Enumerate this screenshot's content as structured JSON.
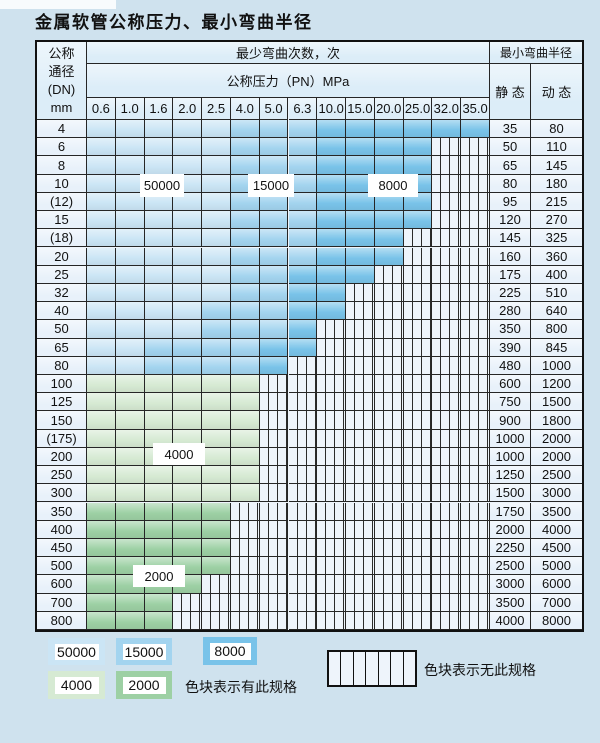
{
  "title": "金属软管公称压力、最小弯曲半径",
  "table": {
    "header": {
      "dn_label_lines": [
        "公称",
        "通径",
        "(DN)",
        "mm"
      ],
      "min_bend_cycles_label": "最少弯曲次数，次",
      "nominal_pressure_label": "公称压力（PN）MPa",
      "min_bend_radius_label": "最小弯曲半径",
      "static_label": "静 态",
      "dynamic_label": "动 态",
      "pressure_columns": [
        "0.6",
        "1.0",
        "1.6",
        "2.0",
        "2.5",
        "4.0",
        "5.0",
        "6.3",
        "10.0",
        "15.0",
        "20.0",
        "25.0",
        "32.0",
        "35.0"
      ]
    },
    "cell_code_key": {
      "L": "50000",
      "M": "15000",
      "D": "8000",
      "A": "4000",
      "B": "2000",
      "X": "no-spec-hatched"
    },
    "rows": [
      {
        "dn": "4",
        "cells": "LLLLLMMMDDDDDD",
        "static_radius": "35",
        "dynamic_radius": "80"
      },
      {
        "dn": "6",
        "cells": "LLLLLMMMDDDDXX",
        "static_radius": "50",
        "dynamic_radius": "110"
      },
      {
        "dn": "8",
        "cells": "LLLLLMMMDDDDXX",
        "static_radius": "65",
        "dynamic_radius": "145"
      },
      {
        "dn": "10",
        "cells": "LLLLLMMMDDDDXX",
        "static_radius": "80",
        "dynamic_radius": "180"
      },
      {
        "dn": "(12)",
        "cells": "LLLLLMMMDDDDXX",
        "static_radius": "95",
        "dynamic_radius": "215"
      },
      {
        "dn": "15",
        "cells": "LLLLLMMMDDDDXX",
        "static_radius": "120",
        "dynamic_radius": "270"
      },
      {
        "dn": "(18)",
        "cells": "LLLLLMMMDDDXXX",
        "static_radius": "145",
        "dynamic_radius": "325"
      },
      {
        "dn": "20",
        "cells": "LLLLLMMMDDDXXX",
        "static_radius": "160",
        "dynamic_radius": "360"
      },
      {
        "dn": "25",
        "cells": "LLLLLMMDDDXXXX",
        "static_radius": "175",
        "dynamic_radius": "400"
      },
      {
        "dn": "32",
        "cells": "LLLLLMMDDXXXXX",
        "static_radius": "225",
        "dynamic_radius": "510"
      },
      {
        "dn": "40",
        "cells": "LLLLMMMDDXXXXX",
        "static_radius": "280",
        "dynamic_radius": "640"
      },
      {
        "dn": "50",
        "cells": "LLLLMMMDXXXXXX",
        "static_radius": "350",
        "dynamic_radius": "800"
      },
      {
        "dn": "65",
        "cells": "LLMMMMDDXXXXXX",
        "static_radius": "390",
        "dynamic_radius": "845"
      },
      {
        "dn": "80",
        "cells": "LLMMMMDXXXXXXX",
        "static_radius": "480",
        "dynamic_radius": "1000"
      },
      {
        "dn": "100",
        "cells": "AAAAAAXXXXXXXX",
        "static_radius": "600",
        "dynamic_radius": "1200"
      },
      {
        "dn": "125",
        "cells": "AAAAAAXXXXXXXX",
        "static_radius": "750",
        "dynamic_radius": "1500"
      },
      {
        "dn": "150",
        "cells": "AAAAAAXXXXXXXX",
        "static_radius": "900",
        "dynamic_radius": "1800"
      },
      {
        "dn": "(175)",
        "cells": "AAAAAAXXXXXXXX",
        "static_radius": "1000",
        "dynamic_radius": "2000"
      },
      {
        "dn": "200",
        "cells": "AAAAAAXXXXXXXX",
        "static_radius": "1000",
        "dynamic_radius": "2000"
      },
      {
        "dn": "250",
        "cells": "AAAAAAXXXXXXXX",
        "static_radius": "1250",
        "dynamic_radius": "2500"
      },
      {
        "dn": "300",
        "cells": "AAAAAAXXXXXXXX",
        "static_radius": "1500",
        "dynamic_radius": "3000"
      },
      {
        "dn": "350",
        "cells": "BBBBBXXXXXXXXX",
        "static_radius": "1750",
        "dynamic_radius": "3500"
      },
      {
        "dn": "400",
        "cells": "BBBBBXXXXXXXXX",
        "static_radius": "2000",
        "dynamic_radius": "4000"
      },
      {
        "dn": "450",
        "cells": "BBBBBXXXXXXXXX",
        "static_radius": "2250",
        "dynamic_radius": "4500"
      },
      {
        "dn": "500",
        "cells": "BBBBBXXXXXXXXX",
        "static_radius": "2500",
        "dynamic_radius": "5000"
      },
      {
        "dn": "600",
        "cells": "BBBBXXXXXXXXXX",
        "static_radius": "3000",
        "dynamic_radius": "6000"
      },
      {
        "dn": "700",
        "cells": "BBBXXXXXXXXXXX",
        "static_radius": "3500",
        "dynamic_radius": "7000"
      },
      {
        "dn": "800",
        "cells": "BBBXXXXXXXXXXX",
        "static_radius": "4000",
        "dynamic_radius": "8000"
      }
    ],
    "overlay_labels": {
      "l50000": "50000",
      "l15000": "15000",
      "l8000": "8000",
      "l4000": "4000",
      "l2000": "2000"
    }
  },
  "legend": {
    "swatches": [
      {
        "value": "50000",
        "color_key": "c50000"
      },
      {
        "value": "15000",
        "color_key": "c15000"
      },
      {
        "value": "8000",
        "color_key": "c8000"
      },
      {
        "value": "4000",
        "color_key": "c4000"
      },
      {
        "value": "2000",
        "color_key": "c2000"
      }
    ],
    "has_spec_note": "色块表示有此规格",
    "no_spec_note": "色块表示无此规格"
  },
  "colors": {
    "c50000": "#cbe5f5",
    "c15000": "#a3d4ef",
    "c8000": "#79c3e9",
    "c4000": "#d6ead3",
    "c2000": "#9dd0a4",
    "empty_cell": "#eef4fb",
    "header_bg": "#dcedf8",
    "label_col_bg": "#e8f1fa",
    "page_bg": "#cfe2ee"
  }
}
